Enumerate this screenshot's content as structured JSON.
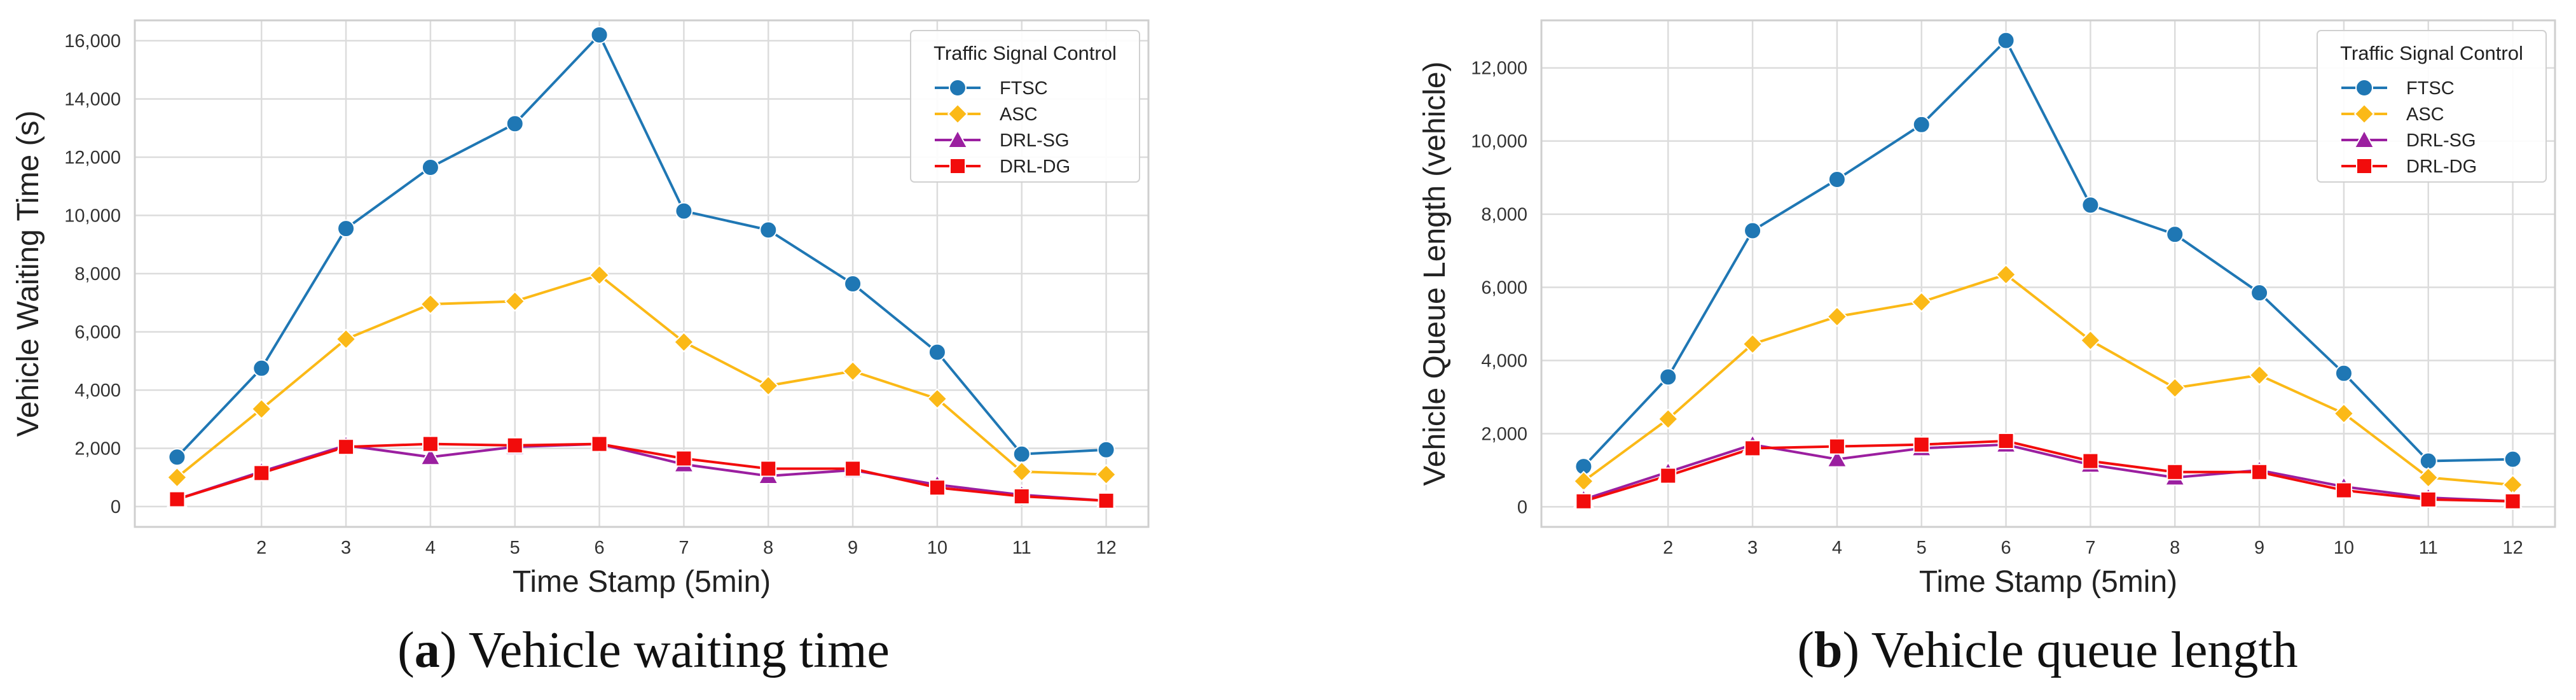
{
  "chart_data": [
    {
      "type": "line",
      "caption_letter": "a",
      "caption_paren_open": "(",
      "caption_paren_close": ")",
      "caption_text": " Vehicle waiting time",
      "xlabel": "Time Stamp (5min)",
      "ylabel": "Vehicle Waiting Time (s)",
      "xlim": [
        0.5,
        12.5
      ],
      "ylim": [
        -700,
        16700
      ],
      "x_ticks": [
        2,
        3,
        4,
        5,
        6,
        7,
        8,
        9,
        10,
        11,
        12
      ],
      "x_tick_labels": [
        "2",
        "3",
        "4",
        "5",
        "6",
        "7",
        "8",
        "9",
        "10",
        "11",
        "12"
      ],
      "y_ticks": [
        0,
        2000,
        4000,
        6000,
        8000,
        10000,
        12000,
        14000,
        16000
      ],
      "y_tick_labels": [
        "0",
        "2,000",
        "4,000",
        "6,000",
        "8,000",
        "10,000",
        "12,000",
        "14,000",
        "16,000"
      ],
      "grid": true,
      "legend_title": "Traffic Signal Control",
      "legend_position": "top-right",
      "x": [
        1,
        2,
        3,
        4,
        5,
        6,
        7,
        8,
        9,
        10,
        11,
        12
      ],
      "series": [
        {
          "name": "FTSC",
          "color": "#1f77b4",
          "marker": "circle",
          "values": [
            1700,
            4750,
            9550,
            11650,
            13150,
            16200,
            10150,
            9500,
            7650,
            5300,
            1800,
            1950
          ]
        },
        {
          "name": "ASC",
          "color": "#fbb917",
          "marker": "diamond",
          "values": [
            1000,
            3350,
            5750,
            6950,
            7050,
            7950,
            5650,
            4150,
            4650,
            3700,
            1200,
            1100
          ]
        },
        {
          "name": "DRL-SG",
          "color": "#9b1fa0",
          "marker": "triangle",
          "values": [
            250,
            1200,
            2100,
            1700,
            2050,
            2150,
            1450,
            1050,
            1250,
            750,
            400,
            200
          ]
        },
        {
          "name": "DRL-DG",
          "color": "#f20c0c",
          "marker": "square",
          "values": [
            250,
            1150,
            2050,
            2150,
            2100,
            2150,
            1650,
            1300,
            1300,
            650,
            350,
            200
          ]
        }
      ]
    },
    {
      "type": "line",
      "caption_letter": "b",
      "caption_paren_open": "(",
      "caption_paren_close": ")",
      "caption_text": " Vehicle queue length",
      "xlabel": "Time Stamp (5min)",
      "ylabel": "Vehicle Queue Length (vehicle)",
      "xlim": [
        0.5,
        12.5
      ],
      "ylim": [
        -550,
        13300
      ],
      "x_ticks": [
        2,
        3,
        4,
        5,
        6,
        7,
        8,
        9,
        10,
        11,
        12
      ],
      "x_tick_labels": [
        "2",
        "3",
        "4",
        "5",
        "6",
        "7",
        "8",
        "9",
        "10",
        "11",
        "12"
      ],
      "y_ticks": [
        0,
        2000,
        4000,
        6000,
        8000,
        10000,
        12000
      ],
      "y_tick_labels": [
        "0",
        "2,000",
        "4,000",
        "6,000",
        "8,000",
        "10,000",
        "12,000"
      ],
      "grid": true,
      "legend_title": "Traffic Signal Control",
      "legend_position": "top-right",
      "x": [
        1,
        2,
        3,
        4,
        5,
        6,
        7,
        8,
        9,
        10,
        11,
        12
      ],
      "series": [
        {
          "name": "FTSC",
          "color": "#1f77b4",
          "marker": "circle",
          "values": [
            1100,
            3550,
            7550,
            8950,
            10450,
            12750,
            8250,
            7450,
            5850,
            3650,
            1250,
            1300
          ]
        },
        {
          "name": "ASC",
          "color": "#fbb917",
          "marker": "diamond",
          "values": [
            700,
            2400,
            4450,
            5200,
            5600,
            6350,
            4550,
            3250,
            3600,
            2550,
            800,
            600
          ]
        },
        {
          "name": "DRL-SG",
          "color": "#9b1fa0",
          "marker": "triangle",
          "values": [
            200,
            950,
            1700,
            1300,
            1600,
            1700,
            1150,
            800,
            1000,
            550,
            250,
            150
          ]
        },
        {
          "name": "DRL-DG",
          "color": "#f20c0c",
          "marker": "square",
          "values": [
            150,
            850,
            1600,
            1650,
            1700,
            1800,
            1250,
            950,
            950,
            450,
            200,
            150
          ]
        }
      ]
    }
  ]
}
